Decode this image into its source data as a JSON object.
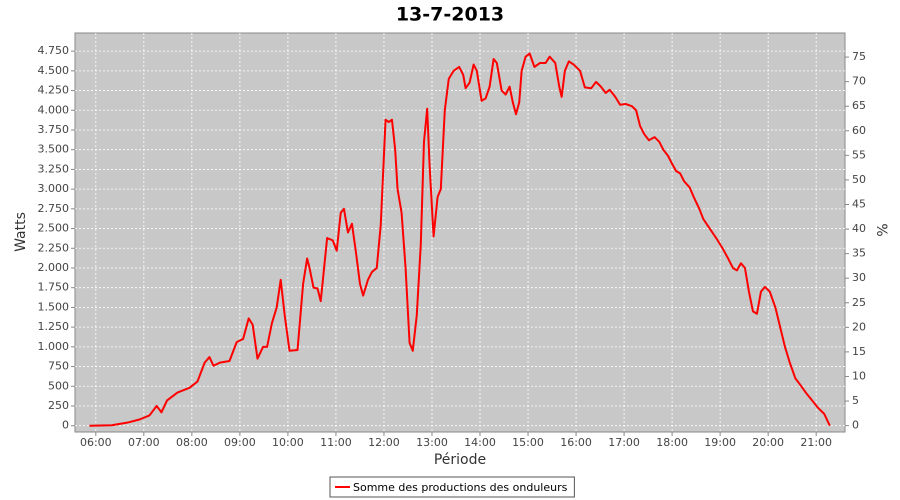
{
  "chart_data": {
    "type": "line",
    "title": "13-7-2013",
    "x_label": "Période",
    "y_label": "Watts",
    "y2_label": "%",
    "x": [
      "05:52",
      "06:20",
      "06:40",
      "06:55",
      "07:07",
      "07:16",
      "07:22",
      "07:29",
      "07:42",
      "07:57",
      "08:07",
      "08:16",
      "08:22",
      "08:27",
      "08:35",
      "08:47",
      "08:56",
      "09:04",
      "09:11",
      "09:16",
      "09:22",
      "09:29",
      "09:34",
      "09:40",
      "09:46",
      "09:51",
      "09:56",
      "10:02",
      "10:12",
      "10:19",
      "10:24",
      "10:27",
      "10:32",
      "10:37",
      "10:41",
      "10:49",
      "10:56",
      "11:01",
      "11:06",
      "11:10",
      "11:15",
      "11:20",
      "11:25",
      "11:30",
      "11:34",
      "11:40",
      "11:45",
      "11:51",
      "11:56",
      "12:02",
      "12:06",
      "12:10",
      "12:14",
      "12:17",
      "12:22",
      "12:27",
      "12:32",
      "12:36",
      "12:41",
      "12:46",
      "12:50",
      "12:54",
      "12:57",
      "13:02",
      "13:07",
      "13:11",
      "13:16",
      "13:21",
      "13:27",
      "13:34",
      "13:39",
      "13:42",
      "13:47",
      "13:52",
      "13:56",
      "14:02",
      "14:07",
      "14:12",
      "14:17",
      "14:21",
      "14:27",
      "14:32",
      "14:37",
      "14:41",
      "14:45",
      "14:49",
      "14:52",
      "14:57",
      "15:02",
      "15:08",
      "15:15",
      "15:22",
      "15:27",
      "15:34",
      "15:39",
      "15:42",
      "15:46",
      "15:51",
      "15:57",
      "16:05",
      "16:11",
      "16:19",
      "16:25",
      "16:31",
      "16:37",
      "16:42",
      "16:49",
      "16:55",
      "17:02",
      "17:10",
      "17:15",
      "17:20",
      "17:25",
      "17:31",
      "17:38",
      "17:44",
      "17:49",
      "17:55",
      "18:00",
      "18:05",
      "18:10",
      "18:15",
      "18:22",
      "18:27",
      "18:34",
      "18:39",
      "18:47",
      "18:55",
      "19:03",
      "19:10",
      "19:16",
      "19:21",
      "19:26",
      "19:31",
      "19:36",
      "19:41",
      "19:46",
      "19:51",
      "19:56",
      "20:02",
      "20:09",
      "20:15",
      "20:21",
      "20:27",
      "20:34",
      "20:40",
      "20:47",
      "20:55",
      "21:02",
      "21:10",
      "21:17"
    ],
    "series": [
      {
        "name": "Somme des productions des onduleurs",
        "color": "#ff0000",
        "values": [
          0,
          5,
          40,
          80,
          130,
          250,
          170,
          320,
          420,
          480,
          560,
          800,
          870,
          760,
          800,
          820,
          1060,
          1100,
          1360,
          1280,
          850,
          1000,
          1000,
          1300,
          1500,
          1850,
          1400,
          950,
          960,
          1800,
          2120,
          2000,
          1750,
          1740,
          1580,
          2380,
          2350,
          2220,
          2700,
          2750,
          2450,
          2560,
          2200,
          1800,
          1650,
          1850,
          1950,
          2000,
          2550,
          3880,
          3850,
          3880,
          3500,
          3000,
          2700,
          2000,
          1050,
          950,
          1400,
          2300,
          3600,
          4020,
          3300,
          2400,
          2900,
          3000,
          4000,
          4400,
          4500,
          4550,
          4450,
          4280,
          4350,
          4580,
          4500,
          4120,
          4150,
          4300,
          4650,
          4600,
          4250,
          4200,
          4300,
          4100,
          3950,
          4100,
          4500,
          4680,
          4720,
          4550,
          4600,
          4600,
          4680,
          4600,
          4300,
          4170,
          4500,
          4620,
          4580,
          4500,
          4290,
          4280,
          4360,
          4300,
          4220,
          4260,
          4170,
          4070,
          4080,
          4050,
          4000,
          3800,
          3700,
          3620,
          3660,
          3600,
          3500,
          3420,
          3320,
          3230,
          3200,
          3100,
          3020,
          2900,
          2750,
          2620,
          2500,
          2380,
          2250,
          2120,
          2000,
          1970,
          2060,
          2000,
          1700,
          1450,
          1420,
          1700,
          1760,
          1700,
          1500,
          1250,
          1000,
          800,
          600,
          520,
          420,
          320,
          230,
          150,
          0
        ]
      }
    ],
    "xlim": [
      "05:34",
      "21:36"
    ],
    "xticks": [
      "06:00",
      "07:00",
      "08:00",
      "09:00",
      "10:00",
      "11:00",
      "12:00",
      "13:00",
      "14:00",
      "15:00",
      "16:00",
      "17:00",
      "18:00",
      "19:00",
      "20:00",
      "21:00"
    ],
    "ylim": [
      -80,
      4980
    ],
    "yticks": [
      0,
      250,
      500,
      750,
      {
        "value": 1000,
        "label": "1.000"
      },
      {
        "value": 1250,
        "label": "1.250"
      },
      {
        "value": 1500,
        "label": "1.500"
      },
      {
        "value": 1750,
        "label": "1.750"
      },
      {
        "value": 2000,
        "label": "2.000"
      },
      {
        "value": 2250,
        "label": "2.250"
      },
      {
        "value": 2500,
        "label": "2.500"
      },
      {
        "value": 2750,
        "label": "2.750"
      },
      {
        "value": 3000,
        "label": "3.000"
      },
      {
        "value": 3250,
        "label": "3.250"
      },
      {
        "value": 3500,
        "label": "3.500"
      },
      {
        "value": 3750,
        "label": "3.750"
      },
      {
        "value": 4000,
        "label": "4.000"
      },
      {
        "value": 4250,
        "label": "4.250"
      },
      {
        "value": 4500,
        "label": "4.500"
      },
      {
        "value": 4750,
        "label": "4.750"
      }
    ],
    "y2lim": [
      -1.3,
      79.9
    ],
    "y2ticks": [
      0,
      5,
      10,
      15,
      20,
      25,
      30,
      35,
      40,
      45,
      50,
      55,
      60,
      65,
      70,
      75
    ],
    "grid": true,
    "legend": "bottom",
    "plot_background": "#c8c8c8"
  }
}
